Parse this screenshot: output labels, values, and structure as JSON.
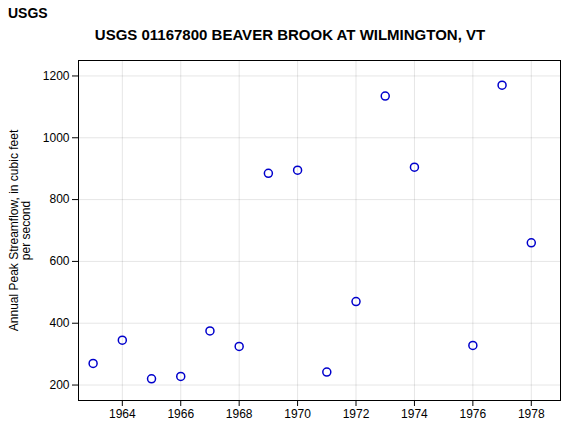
{
  "chart_data": {
    "type": "scatter",
    "title": "USGS 01167800 BEAVER BROOK AT WILMINGTON, VT",
    "ylabel": "Annual Peak Streamflow, in cubic feet\nper second",
    "annotations": [
      "USGS"
    ],
    "x": [
      1963,
      1964,
      1965,
      1966,
      1967,
      1968,
      1969,
      1970,
      1971,
      1972,
      1973,
      1974,
      1976,
      1977,
      1978
    ],
    "values": [
      270,
      345,
      220,
      228,
      375,
      325,
      885,
      895,
      242,
      470,
      1135,
      905,
      328,
      1170,
      660
    ],
    "color": "#0000cc",
    "marker": "circle",
    "xlim": [
      1962.5,
      1979.0
    ],
    "xticks": [
      1964,
      1966,
      1968,
      1970,
      1972,
      1974,
      1976,
      1978
    ],
    "ylim": [
      150,
      1250
    ],
    "yticks": [
      200,
      400,
      600,
      800,
      1000,
      1200
    ],
    "grid": true
  }
}
